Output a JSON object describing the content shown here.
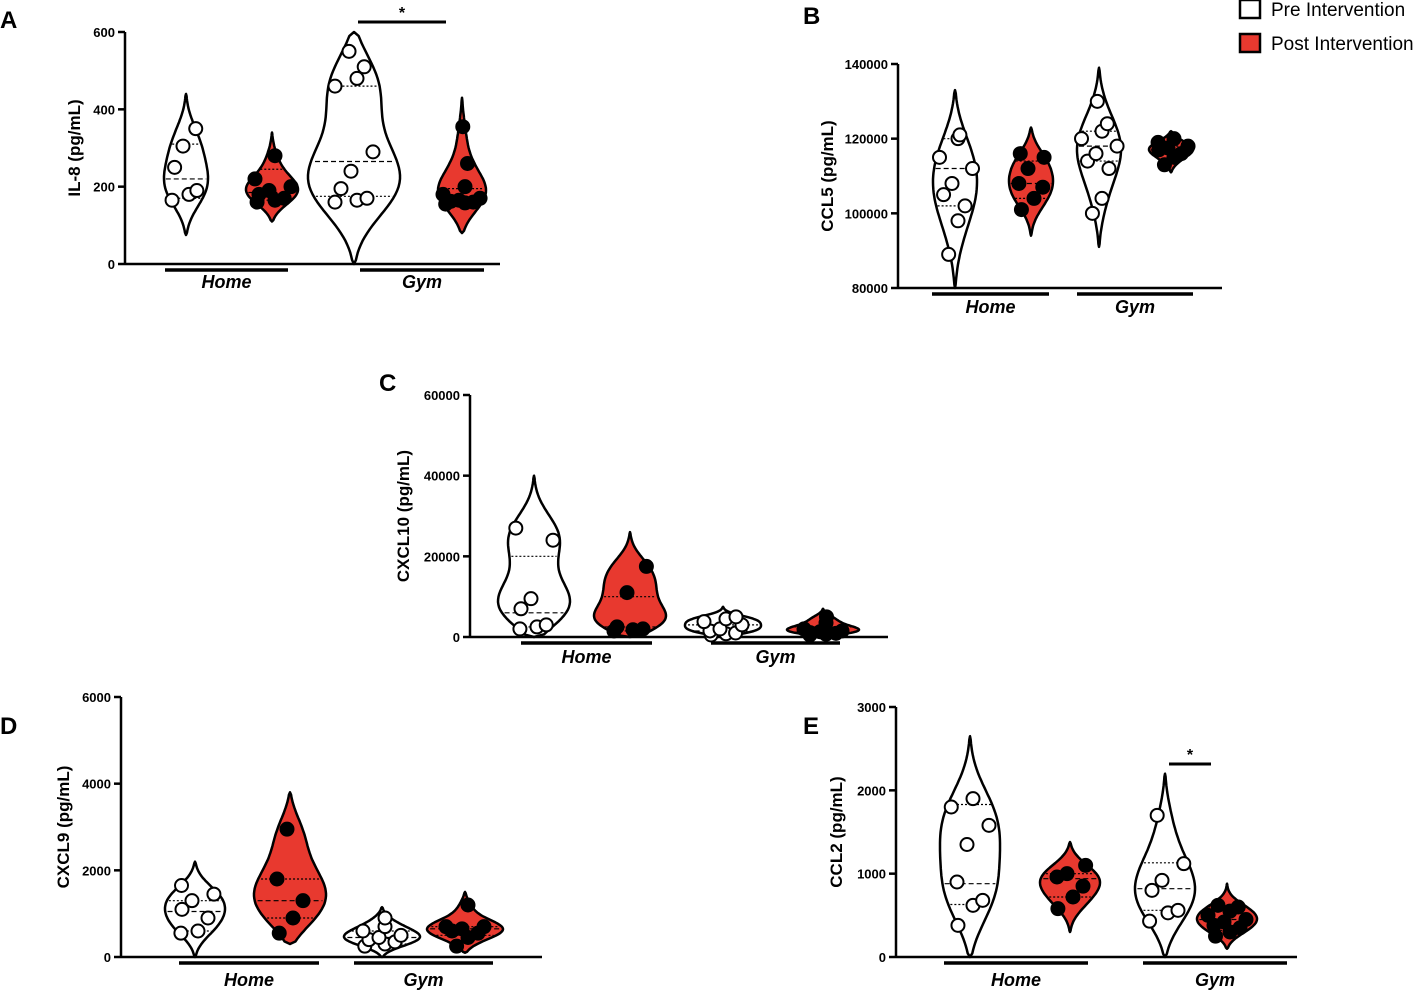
{
  "legend": {
    "items": [
      {
        "label": "Pre Intervention",
        "color": "#ffffff"
      },
      {
        "label": "Post Intervention",
        "color": "#e8392f"
      }
    ]
  },
  "colors": {
    "pre_fill": "#ffffff",
    "post_fill": "#e8392f",
    "stroke": "#000000"
  },
  "chart_data": [
    {
      "panel": "A",
      "type": "violin",
      "ylabel": "IL-8 (pg/mL)",
      "ylim": [
        0,
        600
      ],
      "yticks": [
        "0",
        "200",
        "400",
        "600"
      ],
      "groups": [
        "Home",
        "Gym"
      ],
      "significance": [
        {
          "group": "Gym",
          "label": "*"
        }
      ],
      "series": [
        {
          "group": "Home",
          "condition": "Pre Intervention",
          "min": 75,
          "max": 440,
          "median": 220,
          "q1": 170,
          "q3": 310,
          "values": [
            165,
            180,
            190,
            250,
            305,
            350
          ]
        },
        {
          "group": "Home",
          "condition": "Post Intervention",
          "min": 110,
          "max": 340,
          "median": 185,
          "q1": 165,
          "q3": 245,
          "values": [
            160,
            165,
            170,
            180,
            190,
            200,
            220,
            280
          ]
        },
        {
          "group": "Gym",
          "condition": "Pre Intervention",
          "min": 0,
          "max": 600,
          "median": 265,
          "q1": 175,
          "q3": 460,
          "values": [
            160,
            165,
            170,
            195,
            240,
            290,
            460,
            480,
            510,
            550
          ]
        },
        {
          "group": "Gym",
          "condition": "Post Intervention",
          "min": 80,
          "max": 430,
          "median": 170,
          "q1": 160,
          "q3": 195,
          "values": [
            155,
            158,
            160,
            162,
            165,
            170,
            180,
            200,
            260,
            355
          ]
        }
      ]
    },
    {
      "panel": "B",
      "type": "violin",
      "ylabel": "CCL5 (pg/mL)",
      "ylim": [
        80000,
        140000
      ],
      "yticks": [
        "80000",
        "100000",
        "120000",
        "140000"
      ],
      "groups": [
        "Home",
        "Gym"
      ],
      "series": [
        {
          "group": "Home",
          "condition": "Pre Intervention",
          "min": 80000,
          "max": 133000,
          "median": 112000,
          "q1": 102000,
          "q3": 120000,
          "values": [
            89000,
            98000,
            102000,
            105000,
            108000,
            112000,
            115000,
            120000,
            121000
          ]
        },
        {
          "group": "Home",
          "condition": "Post Intervention",
          "min": 94000,
          "max": 123000,
          "median": 108000,
          "q1": 104000,
          "q3": 114000,
          "values": [
            101000,
            104000,
            107000,
            108000,
            112000,
            115000,
            116000
          ]
        },
        {
          "group": "Gym",
          "condition": "Pre Intervention",
          "min": 91000,
          "max": 139000,
          "median": 118000,
          "q1": 114000,
          "q3": 122000,
          "values": [
            100000,
            104000,
            112000,
            114000,
            116000,
            118000,
            120000,
            122000,
            124000,
            130000
          ]
        },
        {
          "group": "Gym",
          "condition": "Post Intervention",
          "min": 111000,
          "max": 122000,
          "median": 117000,
          "q1": 116000,
          "q3": 118000,
          "values": [
            113000,
            115000,
            116000,
            117000,
            117500,
            118000,
            119000,
            120000
          ]
        }
      ]
    },
    {
      "panel": "C",
      "type": "violin",
      "ylabel": "CXCL10 (pg/mL)",
      "ylim": [
        0,
        60000
      ],
      "yticks": [
        "0",
        "20000",
        "40000",
        "60000"
      ],
      "groups": [
        "Home",
        "Gym"
      ],
      "series": [
        {
          "group": "Home",
          "condition": "Pre Intervention",
          "min": 0,
          "max": 40000,
          "median": 6000,
          "q1": 2500,
          "q3": 20000,
          "values": [
            2000,
            2500,
            3000,
            7000,
            9500,
            24000,
            27000
          ]
        },
        {
          "group": "Home",
          "condition": "Post Intervention",
          "min": 0,
          "max": 26000,
          "median": 2500,
          "q1": 1500,
          "q3": 10000,
          "values": [
            1500,
            1800,
            2000,
            2500,
            11000,
            17500
          ]
        },
        {
          "group": "Gym",
          "condition": "Pre Intervention",
          "min": 0,
          "max": 7500,
          "median": 1500,
          "q1": 700,
          "q3": 3000,
          "values": [
            500,
            800,
            1000,
            1500,
            2000,
            3000,
            3800,
            4500,
            5000
          ]
        },
        {
          "group": "Gym",
          "condition": "Post Intervention",
          "min": 0,
          "max": 7000,
          "median": 1200,
          "q1": 600,
          "q3": 2500,
          "values": [
            500,
            700,
            900,
            1100,
            1300,
            1500,
            2000,
            3500,
            5000
          ]
        }
      ]
    },
    {
      "panel": "D",
      "type": "violin",
      "ylabel": "CXCL9 (pg/mL)",
      "ylim": [
        0,
        6000
      ],
      "yticks": [
        "0",
        "2000",
        "4000",
        "6000"
      ],
      "groups": [
        "Home",
        "Gym"
      ],
      "series": [
        {
          "group": "Home",
          "condition": "Pre Intervention",
          "min": 0,
          "max": 2200,
          "median": 1050,
          "q1": 600,
          "q3": 1300,
          "values": [
            550,
            600,
            900,
            1100,
            1300,
            1450,
            1650
          ]
        },
        {
          "group": "Home",
          "condition": "Post Intervention",
          "min": 300,
          "max": 3800,
          "median": 1300,
          "q1": 900,
          "q3": 1800,
          "values": [
            550,
            900,
            1300,
            1800,
            2950
          ]
        },
        {
          "group": "Gym",
          "condition": "Pre Intervention",
          "min": 0,
          "max": 1150,
          "median": 450,
          "q1": 300,
          "q3": 600,
          "values": [
            250,
            300,
            350,
            400,
            450,
            500,
            600,
            700,
            900
          ]
        },
        {
          "group": "Gym",
          "condition": "Post Intervention",
          "min": 100,
          "max": 1500,
          "median": 650,
          "q1": 500,
          "q3": 700,
          "values": [
            250,
            450,
            550,
            600,
            650,
            700,
            700,
            1200
          ]
        }
      ]
    },
    {
      "panel": "E",
      "type": "violin",
      "ylabel": "CCL2 (pg/mL)",
      "ylim": [
        0,
        3000
      ],
      "yticks": [
        "0",
        "1000",
        "2000",
        "3000"
      ],
      "groups": [
        "Home",
        "Gym"
      ],
      "significance": [
        {
          "group": "Gym",
          "label": "*"
        }
      ],
      "series": [
        {
          "group": "Home",
          "condition": "Pre Intervention",
          "min": 0,
          "max": 2650,
          "median": 880,
          "q1": 630,
          "q3": 1830,
          "values": [
            380,
            620,
            680,
            900,
            1350,
            1580,
            1800,
            1900
          ]
        },
        {
          "group": "Home",
          "condition": "Post Intervention",
          "min": 300,
          "max": 1380,
          "median": 940,
          "q1": 720,
          "q3": 1000,
          "values": [
            580,
            720,
            850,
            960,
            1000,
            1100
          ]
        },
        {
          "group": "Gym",
          "condition": "Pre Intervention",
          "min": 0,
          "max": 2200,
          "median": 820,
          "q1": 560,
          "q3": 1130,
          "values": [
            430,
            530,
            560,
            800,
            920,
            1120,
            1700
          ]
        },
        {
          "group": "Gym",
          "condition": "Post Intervention",
          "min": 100,
          "max": 880,
          "median": 450,
          "q1": 320,
          "q3": 600,
          "values": [
            250,
            300,
            350,
            380,
            420,
            450,
            500,
            550,
            600,
            620
          ]
        }
      ]
    }
  ]
}
